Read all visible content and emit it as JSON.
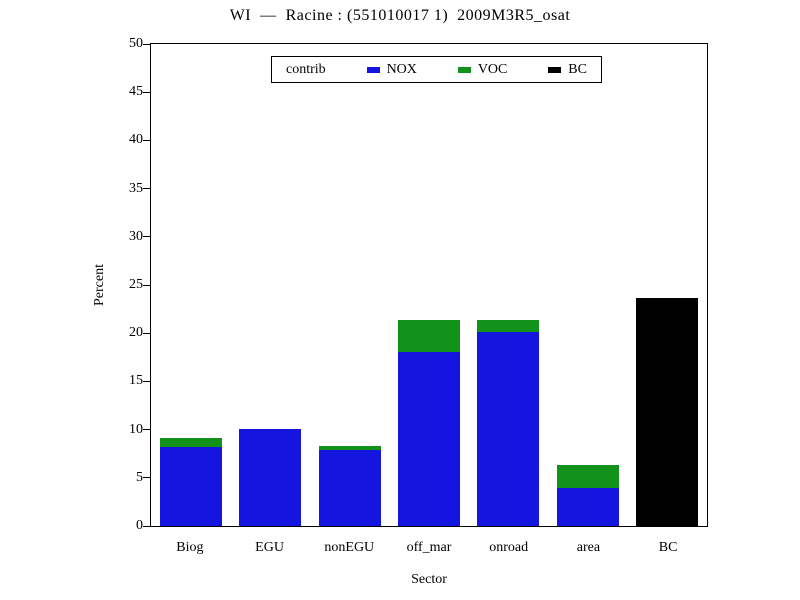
{
  "chart_data": {
    "type": "bar",
    "stacked": true,
    "title": "WI  —  Racine : (551010017 1)  2009M3R5_osat",
    "xlabel": "Sector",
    "ylabel": "Percent",
    "categories": [
      "Biog",
      "EGU",
      "nonEGU",
      "off_mar",
      "onroad",
      "area",
      "BC"
    ],
    "series": [
      {
        "name": "NOX",
        "color": "#1515e0",
        "values": [
          8.2,
          10.1,
          7.9,
          18.1,
          20.1,
          3.9,
          0
        ]
      },
      {
        "name": "VOC",
        "color": "#12921b",
        "values": [
          0.9,
          0,
          0.4,
          3.3,
          1.3,
          2.4,
          0
        ]
      },
      {
        "name": "BC",
        "color": "#000000",
        "values": [
          0,
          0,
          0,
          0,
          0,
          0,
          23.7
        ]
      }
    ],
    "ylim": [
      0,
      50
    ],
    "yticks": [
      0,
      5,
      10,
      15,
      20,
      25,
      30,
      35,
      40,
      45,
      50
    ],
    "legend_title": "contrib",
    "legend_position": "top-inside",
    "grid": false
  }
}
